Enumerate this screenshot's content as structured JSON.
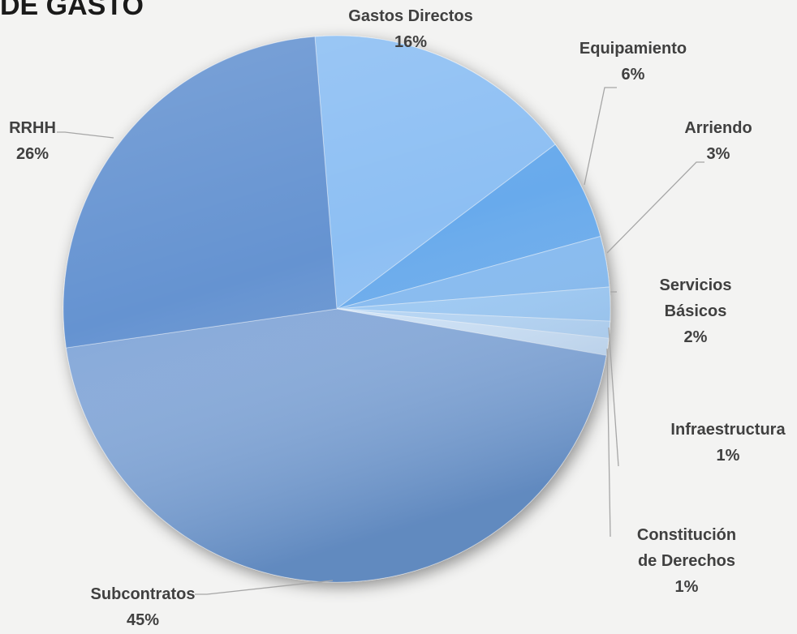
{
  "chart_data": {
    "type": "pie",
    "title": "DE GASTO",
    "categories": [
      "Gastos Directos",
      "Equipamiento",
      "Arriendo",
      "Servicios Básicos",
      "Infraestructura",
      "Constitución de Derechos",
      "Subcontratos",
      "RRHH"
    ],
    "values": [
      16,
      6,
      3,
      2,
      1,
      1,
      45,
      26
    ],
    "value_labels": [
      "16%",
      "6%",
      "3%",
      "2%",
      "1%",
      "1%",
      "45%",
      "26%"
    ],
    "colors": [
      "#8dbff3",
      "#68aaec",
      "#84baf0",
      "#9cc9f4",
      "#b6d6f5",
      "#cfe3f7",
      "#86a9d9",
      "#6593d1"
    ]
  }
}
